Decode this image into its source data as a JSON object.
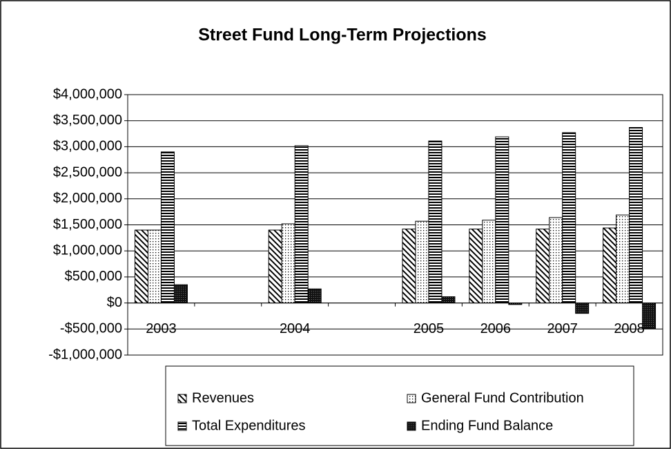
{
  "chart_data": {
    "type": "bar",
    "title": "Street Fund Long-Term Projections",
    "categories": [
      "2003",
      null,
      "2004",
      null,
      "2005",
      "2006",
      "2007",
      "2008"
    ],
    "series": [
      {
        "name": "Revenues",
        "color": "#000000",
        "pattern": "diagonal",
        "values": [
          1400000,
          null,
          1400000,
          null,
          1420000,
          1420000,
          1420000,
          1440000
        ]
      },
      {
        "name": "General Fund Contribution",
        "color": "#000000",
        "pattern": "dots",
        "values": [
          1400000,
          null,
          1520000,
          null,
          1570000,
          1590000,
          1640000,
          1690000
        ]
      },
      {
        "name": "Total Expenditures",
        "color": "#000000",
        "pattern": "horizontal",
        "values": [
          2900000,
          null,
          3020000,
          null,
          3110000,
          3190000,
          3270000,
          3370000
        ]
      },
      {
        "name": "Ending Fund Balance",
        "color": "#000000",
        "pattern": "dense",
        "values": [
          350000,
          null,
          270000,
          null,
          120000,
          -30000,
          -200000,
          -490000
        ]
      }
    ],
    "ylim": [
      -1000000,
      4000000
    ],
    "yticks": [
      {
        "value": -1000000,
        "label": "-$1,000,000"
      },
      {
        "value": -500000,
        "label": "-$500,000"
      },
      {
        "value": 0,
        "label": "$0"
      },
      {
        "value": 500000,
        "label": "$500,000"
      },
      {
        "value": 1000000,
        "label": "$1,000,000"
      },
      {
        "value": 1500000,
        "label": "$1,500,000"
      },
      {
        "value": 2000000,
        "label": "$2,000,000"
      },
      {
        "value": 2500000,
        "label": "$2,500,000"
      },
      {
        "value": 3000000,
        "label": "$3,000,000"
      },
      {
        "value": 3500000,
        "label": "$3,500,000"
      },
      {
        "value": 4000000,
        "label": "$4,000,000"
      }
    ],
    "grid": true,
    "legend": "bottom"
  }
}
